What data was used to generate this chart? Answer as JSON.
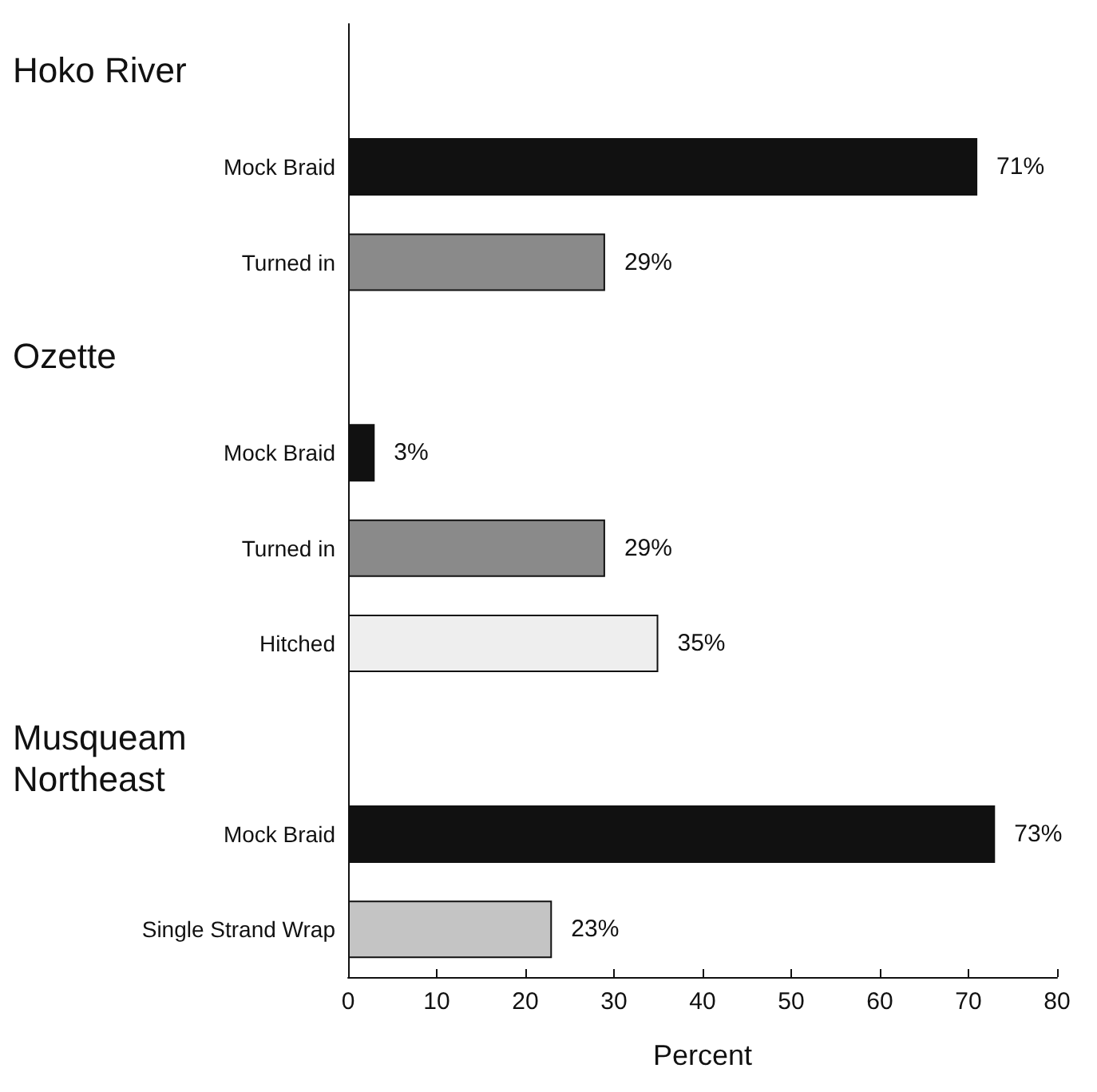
{
  "chart_data": {
    "type": "bar",
    "orientation": "horizontal",
    "xlabel": "Percent",
    "categories": [
      null,
      "Mock Braid",
      "Turned in",
      null,
      "Mock Braid",
      "Turned in",
      "Hitched",
      null,
      "Mock Braid",
      "Single Strand Wrap"
    ],
    "values": [
      null,
      71,
      29,
      null,
      3,
      29,
      35,
      null,
      73,
      23
    ],
    "colors": [
      null,
      "#111111",
      "#8a8a8a",
      null,
      "#111111",
      "#8a8a8a",
      "#eeeeee",
      null,
      "#111111",
      "#c4c4c4"
    ],
    "value_labels": [
      null,
      "71%",
      "29%",
      null,
      "3%",
      "29%",
      "35%",
      null,
      "73%",
      "23%"
    ],
    "annotations": [
      "Hoko River",
      "Ozette",
      "Musqueam Northeast"
    ],
    "xlim": [
      0,
      80
    ],
    "xticks": [
      0,
      10,
      20,
      30,
      40,
      50,
      60,
      70,
      80
    ],
    "grid": false
  }
}
